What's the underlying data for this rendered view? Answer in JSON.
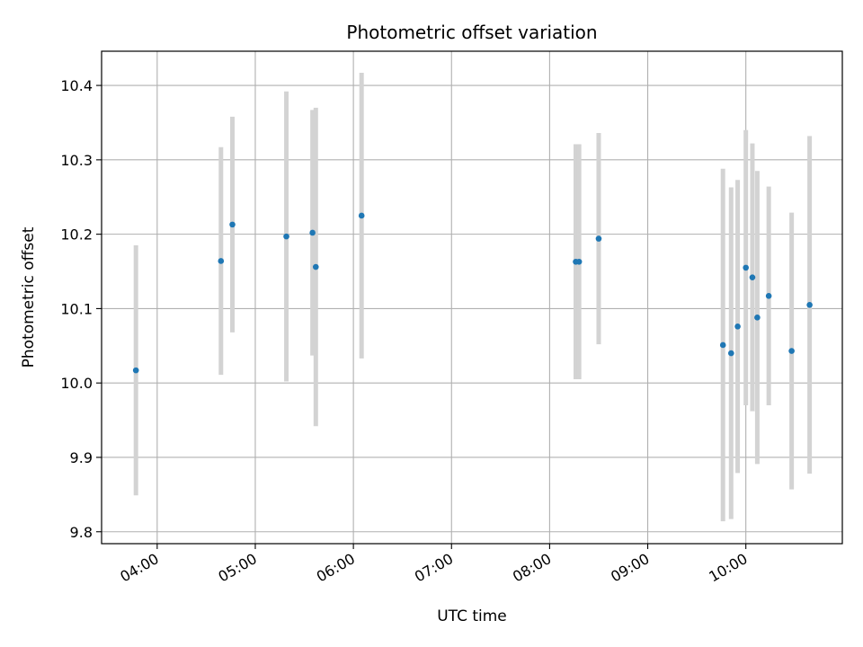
{
  "chart_data": {
    "type": "scatter",
    "title": "Photometric offset variation",
    "xlabel": "UTC time",
    "ylabel": "Photometric offset",
    "x_ticks": [
      "04:00",
      "05:00",
      "06:00",
      "07:00",
      "08:00",
      "09:00",
      "10:00"
    ],
    "y_ticks": [
      "9.8",
      "9.9",
      "10.0",
      "10.1",
      "10.2",
      "10.3",
      "10.4"
    ],
    "xlim": [
      "03:26",
      "10:59"
    ],
    "ylim": [
      9.784,
      10.446
    ],
    "grid": true,
    "colors": {
      "point": "#1f77b4",
      "errorbar": "#d3d3d3",
      "grid": "#b0b0b0"
    },
    "points": [
      {
        "x": "03:47",
        "y": 10.017,
        "err": 0.168
      },
      {
        "x": "04:39",
        "y": 10.164,
        "err": 0.153
      },
      {
        "x": "04:46",
        "y": 10.213,
        "err": 0.145
      },
      {
        "x": "05:19",
        "y": 10.197,
        "err": 0.195
      },
      {
        "x": "05:35",
        "y": 10.202,
        "err": 0.165
      },
      {
        "x": "05:37",
        "y": 10.156,
        "err": 0.214
      },
      {
        "x": "06:05",
        "y": 10.225,
        "err": 0.192
      },
      {
        "x": "08:16",
        "y": 10.163,
        "err": 0.158
      },
      {
        "x": "08:18",
        "y": 10.163,
        "err": 0.158
      },
      {
        "x": "08:30",
        "y": 10.194,
        "err": 0.142
      },
      {
        "x": "09:46",
        "y": 10.051,
        "err": 0.237
      },
      {
        "x": "09:51",
        "y": 10.04,
        "err": 0.223
      },
      {
        "x": "09:55",
        "y": 10.076,
        "err": 0.197
      },
      {
        "x": "10:00",
        "y": 10.155,
        "err": 0.185
      },
      {
        "x": "10:04",
        "y": 10.142,
        "err": 0.18
      },
      {
        "x": "10:07",
        "y": 10.088,
        "err": 0.197
      },
      {
        "x": "10:14",
        "y": 10.117,
        "err": 0.147
      },
      {
        "x": "10:28",
        "y": 10.043,
        "err": 0.186
      },
      {
        "x": "10:39",
        "y": 10.105,
        "err": 0.227
      }
    ]
  }
}
